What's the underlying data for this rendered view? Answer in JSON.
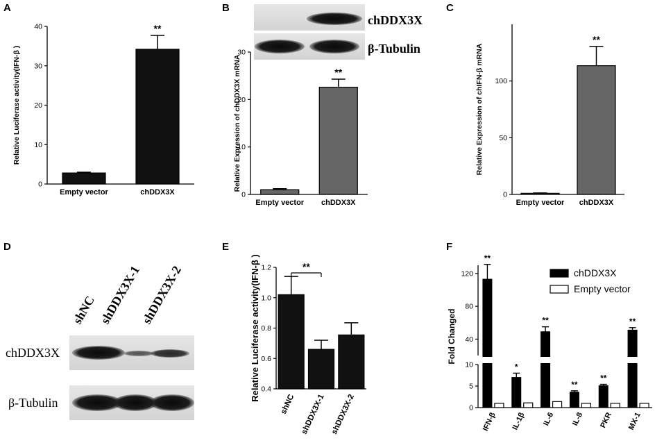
{
  "panels": {
    "A": {
      "letter": "A",
      "chart_data": {
        "type": "bar",
        "categories": [
          "Empty vector",
          "chDDX3X"
        ],
        "values": [
          2.8,
          34.2
        ],
        "errors": [
          0.2,
          3.5
        ],
        "colors": [
          "#111111",
          "#111111"
        ],
        "ylabel": "Relative Luciferase activity(IFN-β )",
        "ylim": [
          0,
          40
        ],
        "yticks": [
          0,
          10,
          20,
          30,
          40
        ],
        "annotations": [
          "",
          "**"
        ],
        "legend": "none",
        "grid": false
      }
    },
    "B": {
      "letter": "B",
      "blot_labels": [
        "chDDX3X",
        "β-Tubulin"
      ],
      "chart_data": {
        "type": "bar",
        "categories": [
          "Empty vector",
          "chDDX3X"
        ],
        "values": [
          1.0,
          22.6
        ],
        "errors": [
          0.2,
          1.7
        ],
        "colors": [
          "#666666",
          "#666666"
        ],
        "ylabel": "Relative Expression of chDDX3X mRNA",
        "ylim": [
          0,
          30
        ],
        "yticks": [
          0,
          10,
          20,
          30
        ],
        "annotations": [
          "",
          "**"
        ],
        "legend": "none",
        "grid": false
      }
    },
    "C": {
      "letter": "C",
      "chart_data": {
        "type": "bar",
        "categories": [
          "Empty vector",
          "chDDX3X"
        ],
        "values": [
          1.0,
          113.5
        ],
        "errors": [
          0.3,
          17.0
        ],
        "colors": [
          "#666666",
          "#666666"
        ],
        "ylabel": "Relative Expression of chIFN-β  mRNA",
        "ylim": [
          0,
          150
        ],
        "yticks": [
          0,
          50,
          100
        ],
        "annotations": [
          "",
          "**"
        ],
        "legend": "none",
        "grid": false
      }
    },
    "D": {
      "letter": "D",
      "lane_labels": [
        "shNC",
        "shDDX3X-1",
        "shDDX3X-2"
      ],
      "blot_labels": [
        "chDDX3X",
        "β-Tubulin"
      ]
    },
    "E": {
      "letter": "E",
      "chart_data": {
        "type": "bar",
        "categories": [
          "shNC",
          "shDDX3X-1",
          "shDDX3X-2"
        ],
        "values": [
          1.02,
          0.66,
          0.755
        ],
        "errors": [
          0.12,
          0.06,
          0.08
        ],
        "colors": [
          "#111111",
          "#111111",
          "#111111"
        ],
        "ylabel": "Relative Luciferase activity(IFN-β )",
        "ylim": [
          0.4,
          1.2
        ],
        "yticks": [
          0.4,
          0.6,
          0.8,
          1.0,
          1.2
        ],
        "significance": {
          "from": 0,
          "to": 1,
          "label": "**"
        },
        "legend": "none",
        "grid": false
      }
    },
    "F": {
      "letter": "F",
      "chart_data": {
        "type": "bar",
        "categories": [
          "IFN-β",
          "IL-1β",
          "IL-6",
          "IL-8",
          "PKR",
          "MX-1"
        ],
        "series": [
          {
            "name": "chDDX3X",
            "values": [
              113,
              7.0,
              49,
              3.6,
              5.1,
              51
            ],
            "errors": [
              18,
              1.0,
              6,
              0.3,
              0.3,
              3
            ],
            "color": "#000000"
          },
          {
            "name": "Empty vector",
            "values": [
              1.0,
              1.1,
              1.4,
              1.0,
              1.0,
              1.0
            ],
            "errors": [
              0.1,
              0.1,
              0.3,
              0.1,
              0.1,
              0.1
            ],
            "color": "#ffffff"
          }
        ],
        "annotations": [
          "**",
          "*",
          "**",
          "**",
          "**",
          "**"
        ],
        "ylabel": "Fold Changed",
        "axis_break": [
          10,
          20
        ],
        "ylim": [
          0,
          130
        ],
        "yticks": [
          0,
          5,
          10,
          40,
          80,
          120
        ],
        "legend": "top-right",
        "grid": false
      }
    }
  }
}
